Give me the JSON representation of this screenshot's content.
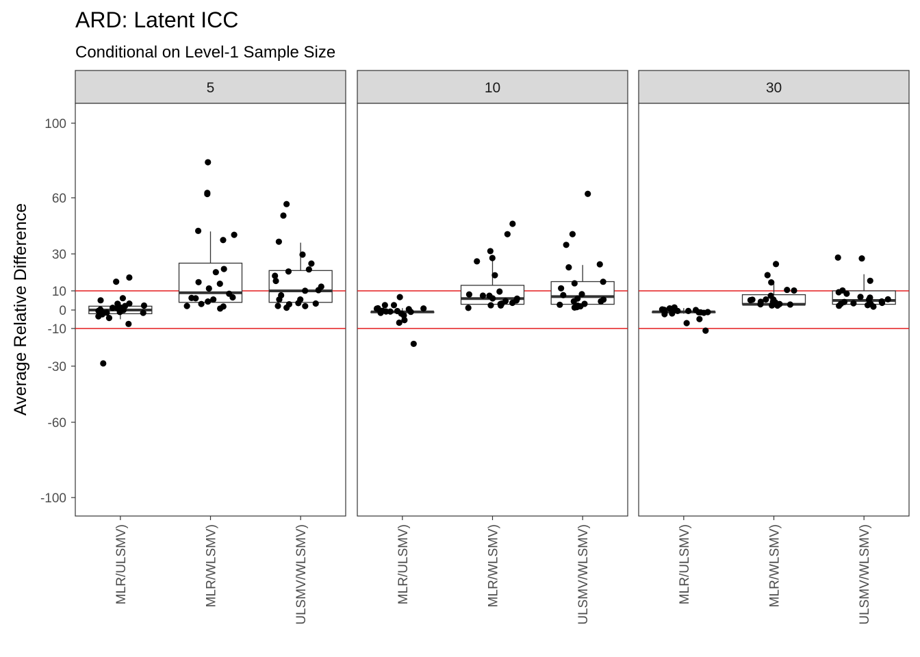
{
  "chart_data": {
    "type": "boxplot",
    "title": "ARD: Latent ICC",
    "subtitle": "Conditional on Level-1 Sample Size",
    "ylabel": "Average Relative Difference",
    "xlabel": "",
    "y_ticks": [
      100,
      60,
      30,
      10,
      0,
      -10,
      -30,
      -60,
      -100
    ],
    "ylim": [
      -110,
      110
    ],
    "categories": [
      "MLR/ULSMV)",
      "MLR/WLSMV)",
      "ULSMV/WLSMV)"
    ],
    "reference_lines": [
      10,
      -10
    ],
    "reference_color": "#e41a1c",
    "panels": [
      {
        "label": "5",
        "boxes": [
          {
            "q1": -2,
            "median": 0,
            "q3": 2,
            "whisker_low": -5,
            "whisker_high": 4
          },
          {
            "q1": 4,
            "median": 9,
            "q3": 25,
            "whisker_low": 4,
            "whisker_high": 42
          },
          {
            "q1": 4,
            "median": 10,
            "q3": 21,
            "whisker_low": 4,
            "whisker_high": 36
          }
        ],
        "points": [
          [
            -1,
            0,
            1,
            -3,
            2,
            -4,
            -8,
            1,
            3,
            0,
            -2,
            -1,
            5,
            2,
            15,
            17,
            -28,
            3,
            6,
            -2,
            1,
            0,
            -1
          ],
          [
            11,
            20,
            22,
            6,
            4,
            2,
            14,
            40,
            62,
            63,
            79,
            42,
            37,
            15,
            9,
            7,
            2,
            5,
            3,
            6,
            1
          ],
          [
            21,
            18,
            10,
            6,
            4,
            2,
            8,
            12,
            15,
            25,
            22,
            57,
            50,
            36,
            30,
            10,
            5,
            3,
            2,
            1,
            3
          ]
        ]
      },
      {
        "label": "10",
        "boxes": [
          {
            "q1": -1,
            "median": -1,
            "q3": -1,
            "whisker_low": -4,
            "whisker_high": 1
          },
          {
            "q1": 3,
            "median": 6,
            "q3": 13,
            "whisker_low": 3,
            "whisker_high": 28
          },
          {
            "q1": 3,
            "median": 7,
            "q3": 15,
            "whisker_low": 3,
            "whisker_high": 24
          }
        ],
        "points": [
          [
            2,
            0,
            -1,
            -2,
            1,
            7,
            3,
            -18,
            -1,
            0,
            -2,
            -1,
            1,
            -7,
            -5,
            -3,
            0,
            -1,
            1
          ],
          [
            32,
            46,
            28,
            41,
            19,
            10,
            7,
            6,
            3,
            5,
            6,
            4,
            8,
            3,
            2,
            3,
            26,
            7,
            5,
            1
          ],
          [
            35,
            23,
            41,
            62,
            24,
            14,
            15,
            11,
            8,
            6,
            4,
            3,
            2,
            5,
            2,
            1,
            8,
            4,
            3,
            1
          ]
        ]
      },
      {
        "label": "30",
        "boxes": [
          {
            "q1": -1,
            "median": -1,
            "q3": -1,
            "whisker_low": -2,
            "whisker_high": 1
          },
          {
            "q1": 3,
            "median": 3,
            "q3": 8,
            "whisker_low": 3,
            "whisker_high": 15
          },
          {
            "q1": 3,
            "median": 5,
            "q3": 10,
            "whisker_low": 3,
            "whisker_high": 19
          }
        ],
        "points": [
          [
            0,
            1,
            -1,
            0,
            -5,
            0,
            -1,
            0,
            -2,
            1,
            -11,
            -1,
            0,
            -2,
            -1,
            0,
            -7,
            0,
            -1
          ],
          [
            4,
            3,
            5,
            19,
            11,
            15,
            7,
            10,
            4,
            5,
            6,
            3,
            24,
            2,
            4,
            3,
            2,
            3,
            5
          ],
          [
            28,
            27,
            15,
            10,
            7,
            6,
            8,
            5,
            4,
            3,
            2,
            6,
            3,
            4,
            5,
            2,
            9,
            4,
            3
          ]
        ]
      }
    ]
  }
}
